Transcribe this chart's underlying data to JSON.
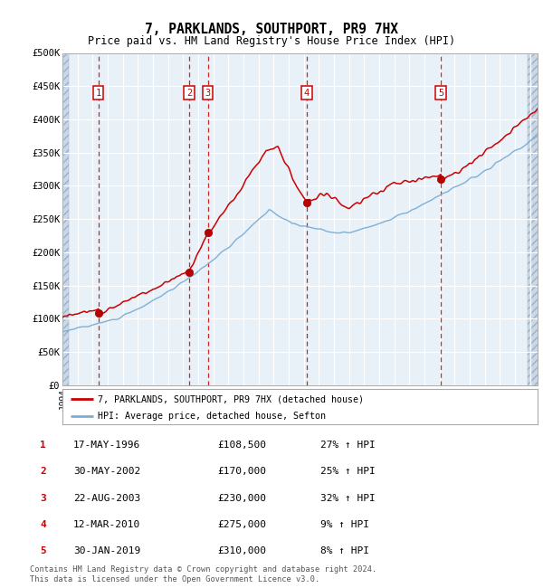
{
  "title": "7, PARKLANDS, SOUTHPORT, PR9 7HX",
  "subtitle": "Price paid vs. HM Land Registry's House Price Index (HPI)",
  "ylim": [
    0,
    500000
  ],
  "yticks": [
    0,
    50000,
    100000,
    150000,
    200000,
    250000,
    300000,
    350000,
    400000,
    450000,
    500000
  ],
  "ytick_labels": [
    "£0",
    "£50K",
    "£100K",
    "£150K",
    "£200K",
    "£250K",
    "£300K",
    "£350K",
    "£400K",
    "£450K",
    "£500K"
  ],
  "hpi_color": "#7aadd4",
  "price_color": "#cc0000",
  "plot_bg": "#e8f0f8",
  "grid_color": "#ffffff",
  "sale_points": [
    {
      "date_num": 1996.38,
      "price": 108500,
      "label": "1"
    },
    {
      "date_num": 2002.41,
      "price": 170000,
      "label": "2"
    },
    {
      "date_num": 2003.64,
      "price": 230000,
      "label": "3"
    },
    {
      "date_num": 2010.19,
      "price": 275000,
      "label": "4"
    },
    {
      "date_num": 2019.08,
      "price": 310000,
      "label": "5"
    }
  ],
  "table_rows": [
    [
      "1",
      "17-MAY-1996",
      "£108,500",
      "27% ↑ HPI"
    ],
    [
      "2",
      "30-MAY-2002",
      "£170,000",
      "25% ↑ HPI"
    ],
    [
      "3",
      "22-AUG-2003",
      "£230,000",
      "32% ↑ HPI"
    ],
    [
      "4",
      "12-MAR-2010",
      "£275,000",
      "9% ↑ HPI"
    ],
    [
      "5",
      "30-JAN-2019",
      "£310,000",
      "8% ↑ HPI"
    ]
  ],
  "legend_label_price": "7, PARKLANDS, SOUTHPORT, PR9 7HX (detached house)",
  "legend_label_hpi": "HPI: Average price, detached house, Sefton",
  "footer": "Contains HM Land Registry data © Crown copyright and database right 2024.\nThis data is licensed under the Open Government Licence v3.0.",
  "xmin": 1994.0,
  "xmax": 2025.5
}
